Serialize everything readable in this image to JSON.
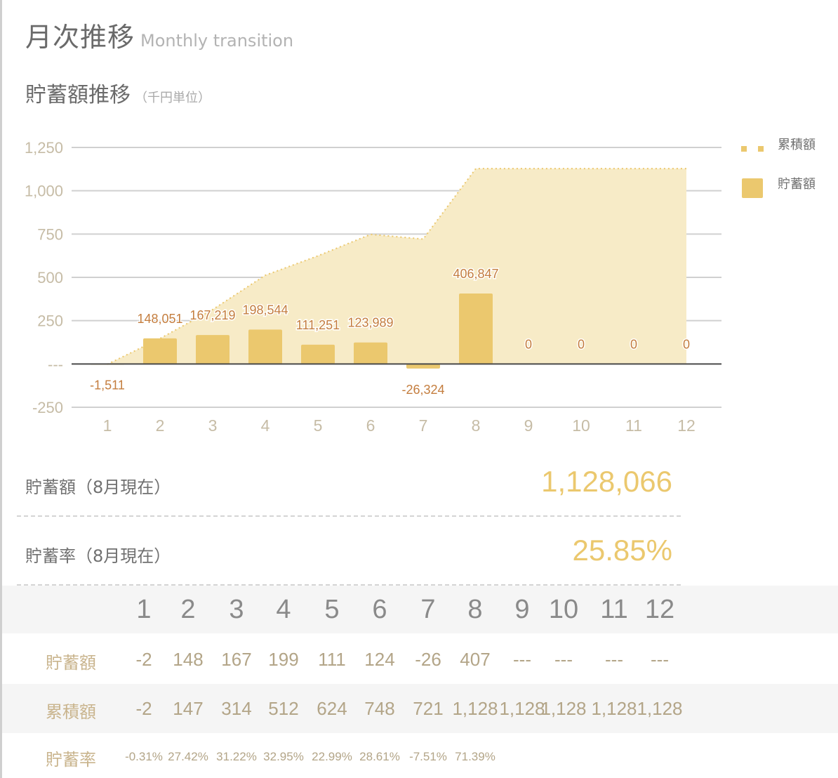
{
  "header": {
    "title": "月次推移",
    "title_en": "Monthly transition",
    "subtitle": "貯蓄額推移",
    "unit": "（千円単位）"
  },
  "colors": {
    "bar": "#ebc86e",
    "area": "#f7ebc7",
    "area_line": "#ebc86e",
    "label": "#c47d3e",
    "grid": "#d0d0d0",
    "axis": "#bfb49a",
    "accent": "#ebc86e"
  },
  "chart_data": {
    "type": "bar",
    "categories": [
      "1",
      "2",
      "3",
      "4",
      "5",
      "6",
      "7",
      "8",
      "9",
      "10",
      "11",
      "12"
    ],
    "series": [
      {
        "name": "貯蓄額",
        "type": "bar",
        "values": [
          -1.511,
          148.051,
          167.219,
          198.544,
          111.251,
          123.989,
          -26.324,
          406.847,
          0,
          0,
          0,
          0
        ]
      },
      {
        "name": "累積額",
        "type": "area",
        "values": [
          -2,
          147,
          314,
          512,
          624,
          748,
          721,
          1128,
          1128,
          1128,
          1128,
          1128
        ]
      }
    ],
    "data_labels": [
      "-1,511",
      "148,051",
      "167,219",
      "198,544",
      "111,251",
      "123,989",
      "-26,324",
      "406,847",
      "0",
      "0",
      "0",
      "0"
    ],
    "ylim": [
      -250,
      1250
    ],
    "yticks": [
      -250,
      0,
      250,
      500,
      750,
      1000,
      1250
    ],
    "ytick_labels": [
      "-250",
      "---",
      "250",
      "500",
      "750",
      "1,000",
      "1,250"
    ],
    "legend": [
      "累積額",
      "貯蓄額"
    ],
    "legend_position": "top-right",
    "grid": true
  },
  "summary": {
    "savings_label": "貯蓄額（8月現在）",
    "savings_value": "1,128,066",
    "rate_label": "貯蓄率（8月現在）",
    "rate_value": "25.85%"
  },
  "table": {
    "months": [
      "1",
      "2",
      "3",
      "4",
      "5",
      "6",
      "7",
      "8",
      "9",
      "10",
      "11",
      "12"
    ],
    "rows": [
      {
        "label": "貯蓄額",
        "values": [
          "-2",
          "148",
          "167",
          "199",
          "111",
          "124",
          "-26",
          "407",
          "---",
          "---",
          "---",
          "---"
        ]
      },
      {
        "label": "累積額",
        "values": [
          "-2",
          "147",
          "314",
          "512",
          "624",
          "748",
          "721",
          "1,128",
          "1,128",
          "1,128",
          "1,128",
          "1,128"
        ]
      },
      {
        "label": "貯蓄率",
        "values": [
          "-0.31%",
          "27.42%",
          "31.22%",
          "32.95%",
          "22.99%",
          "28.61%",
          "-7.51%",
          "71.39%",
          "",
          "",
          "",
          ""
        ]
      }
    ]
  }
}
